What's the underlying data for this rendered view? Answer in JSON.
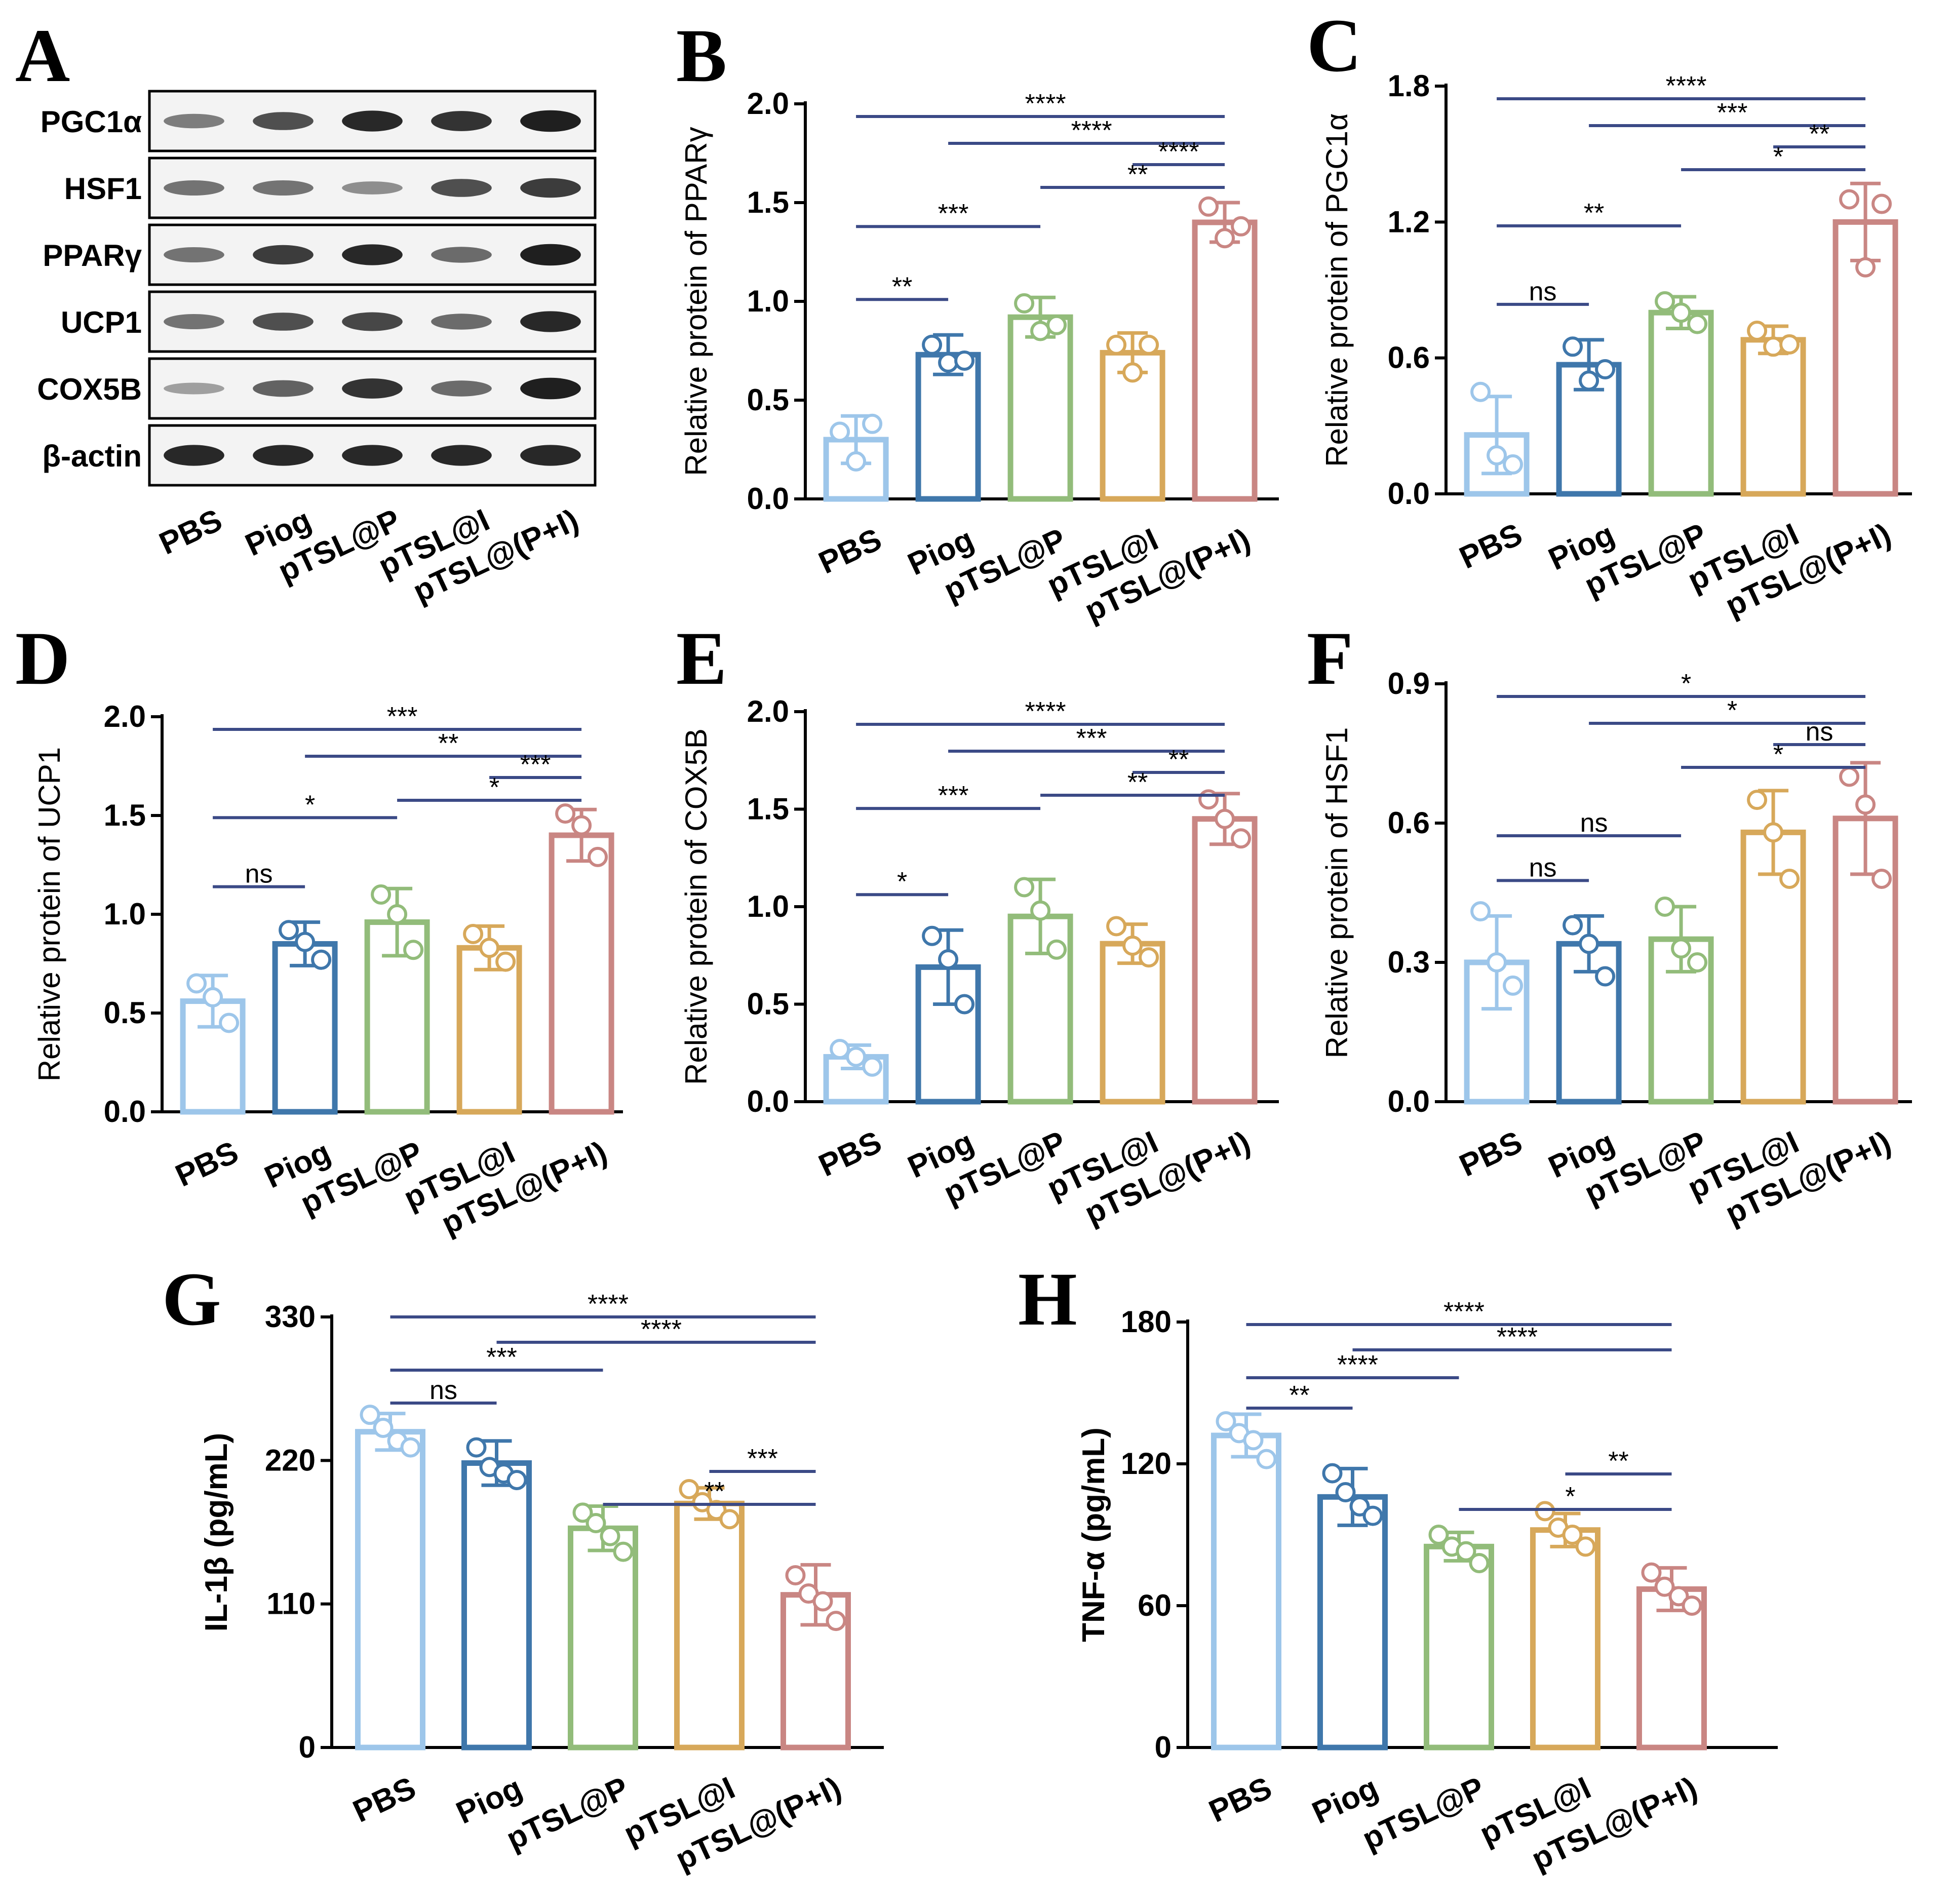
{
  "colors": {
    "PBS": "#9DC6EA",
    "Piog": "#3F77AB",
    "pTSL@P": "#92BC7A",
    "pTSL@I": "#D7A85A",
    "pTSL@(P+I)": "#C98683",
    "sigline": "#3B4A86",
    "axis": "#000000"
  },
  "panel_letters": [
    "A",
    "B",
    "C",
    "D",
    "E",
    "F",
    "G",
    "H"
  ],
  "blot": {
    "letter": "A",
    "proteins": [
      "PGC1α",
      "HSF1",
      "PPARγ",
      "UCP1",
      "COX5B",
      "β-actin"
    ],
    "lanes": [
      "PBS",
      "Piog",
      "pTSL@P",
      "pTSL@I",
      "pTSL@(P+I)"
    ],
    "band_intensity": [
      [
        0.45,
        0.7,
        0.9,
        0.85,
        0.95
      ],
      [
        0.5,
        0.5,
        0.35,
        0.7,
        0.8
      ],
      [
        0.5,
        0.8,
        0.9,
        0.55,
        0.95
      ],
      [
        0.5,
        0.7,
        0.75,
        0.55,
        0.9
      ],
      [
        0.25,
        0.6,
        0.85,
        0.55,
        0.95
      ],
      [
        0.9,
        0.9,
        0.9,
        0.9,
        0.9
      ]
    ]
  },
  "chart_data": [
    {
      "panel": "B",
      "type": "bar",
      "categories": [
        "PBS",
        "Piog",
        "pTSL@P",
        "pTSL@I",
        "pTSL@(P+I)"
      ],
      "values": [
        0.3,
        0.73,
        0.92,
        0.74,
        1.4
      ],
      "errors": [
        0.12,
        0.1,
        0.1,
        0.1,
        0.1
      ],
      "points": [
        [
          0.34,
          0.19,
          0.38
        ],
        [
          0.78,
          0.69,
          0.7
        ],
        [
          0.99,
          0.85,
          0.88
        ],
        [
          0.78,
          0.64,
          0.78
        ],
        [
          1.48,
          1.32,
          1.38
        ]
      ],
      "ylabel": "Relative protein of PPARγ",
      "ylim": [
        0,
        2.0
      ],
      "yticks": [
        0,
        0.5,
        1.0,
        1.5,
        2.0
      ],
      "ytick_labels": [
        "0.0",
        "0.5",
        "1.0",
        "1.5",
        "2.0"
      ],
      "brackets": [
        {
          "from": 0,
          "to": 4,
          "label": "****"
        },
        {
          "from": 1,
          "to": 4,
          "label": "****"
        },
        {
          "from": 3,
          "to": 4,
          "label": "****"
        },
        {
          "from": 2,
          "to": 4,
          "label": "**"
        },
        {
          "from": 0,
          "to": 2,
          "label": "***"
        },
        {
          "from": 0,
          "to": 1,
          "label": "**"
        }
      ]
    },
    {
      "panel": "C",
      "type": "bar",
      "categories": [
        "PBS",
        "Piog",
        "pTSL@P",
        "pTSL@I",
        "pTSL@(P+I)"
      ],
      "values": [
        0.26,
        0.57,
        0.8,
        0.68,
        1.2
      ],
      "errors": [
        0.17,
        0.11,
        0.07,
        0.06,
        0.17
      ],
      "points": [
        [
          0.45,
          0.17,
          0.13
        ],
        [
          0.65,
          0.5,
          0.55
        ],
        [
          0.85,
          0.8,
          0.75
        ],
        [
          0.72,
          0.65,
          0.66
        ],
        [
          1.3,
          1.0,
          1.28
        ]
      ],
      "ylabel": "Relative protein of PGC1α",
      "ylim": [
        0,
        1.8
      ],
      "yticks": [
        0,
        0.6,
        1.2,
        1.8
      ],
      "ytick_labels": [
        "0.0",
        "0.6",
        "1.2",
        "1.8"
      ],
      "brackets": [
        {
          "from": 0,
          "to": 4,
          "label": "****"
        },
        {
          "from": 1,
          "to": 4,
          "label": "***"
        },
        {
          "from": 3,
          "to": 4,
          "label": "**"
        },
        {
          "from": 2,
          "to": 4,
          "label": "*"
        },
        {
          "from": 0,
          "to": 2,
          "label": "**"
        },
        {
          "from": 0,
          "to": 1,
          "label": "ns"
        }
      ]
    },
    {
      "panel": "D",
      "type": "bar",
      "categories": [
        "PBS",
        "Piog",
        "pTSL@P",
        "pTSL@I",
        "pTSL@(P+I)"
      ],
      "values": [
        0.56,
        0.85,
        0.96,
        0.83,
        1.4
      ],
      "errors": [
        0.13,
        0.11,
        0.17,
        0.11,
        0.13
      ],
      "points": [
        [
          0.65,
          0.58,
          0.45
        ],
        [
          0.92,
          0.86,
          0.77
        ],
        [
          1.1,
          1.0,
          0.82
        ],
        [
          0.9,
          0.83,
          0.76
        ],
        [
          1.51,
          1.45,
          1.29
        ]
      ],
      "ylabel": "Relative protein of UCP1",
      "ylim": [
        0,
        2.0
      ],
      "yticks": [
        0,
        0.5,
        1.0,
        1.5,
        2.0
      ],
      "ytick_labels": [
        "0.0",
        "0.5",
        "1.0",
        "1.5",
        "2.0"
      ],
      "brackets": [
        {
          "from": 0,
          "to": 4,
          "label": "***"
        },
        {
          "from": 1,
          "to": 4,
          "label": "**"
        },
        {
          "from": 3,
          "to": 4,
          "label": "***"
        },
        {
          "from": 2,
          "to": 4,
          "label": "*"
        },
        {
          "from": 0,
          "to": 2,
          "label": "*"
        },
        {
          "from": 0,
          "to": 1,
          "label": "ns"
        }
      ]
    },
    {
      "panel": "E",
      "type": "bar",
      "categories": [
        "PBS",
        "Piog",
        "pTSL@P",
        "pTSL@I",
        "pTSL@(P+I)"
      ],
      "values": [
        0.23,
        0.69,
        0.95,
        0.81,
        1.45
      ],
      "errors": [
        0.06,
        0.19,
        0.19,
        0.1,
        0.13
      ],
      "points": [
        [
          0.27,
          0.23,
          0.18
        ],
        [
          0.85,
          0.73,
          0.5
        ],
        [
          1.1,
          0.98,
          0.78
        ],
        [
          0.9,
          0.8,
          0.74
        ],
        [
          1.55,
          1.45,
          1.35
        ]
      ],
      "ylabel": "Relative protein of COX5B",
      "ylim": [
        0,
        2.0
      ],
      "yticks": [
        0,
        0.5,
        1.0,
        1.5,
        2.0
      ],
      "ytick_labels": [
        "0.0",
        "0.5",
        "1.0",
        "1.5",
        "2.0"
      ],
      "brackets": [
        {
          "from": 0,
          "to": 4,
          "label": "****"
        },
        {
          "from": 1,
          "to": 4,
          "label": "***"
        },
        {
          "from": 3,
          "to": 4,
          "label": "**"
        },
        {
          "from": 2,
          "to": 4,
          "label": "**"
        },
        {
          "from": 0,
          "to": 2,
          "label": "***"
        },
        {
          "from": 0,
          "to": 1,
          "label": "*"
        }
      ]
    },
    {
      "panel": "F",
      "type": "bar",
      "categories": [
        "PBS",
        "Piog",
        "pTSL@P",
        "pTSL@I",
        "pTSL@(P+I)"
      ],
      "values": [
        0.3,
        0.34,
        0.35,
        0.58,
        0.61
      ],
      "errors": [
        0.1,
        0.06,
        0.07,
        0.09,
        0.12
      ],
      "points": [
        [
          0.41,
          0.3,
          0.25
        ],
        [
          0.38,
          0.34,
          0.27
        ],
        [
          0.42,
          0.33,
          0.3
        ],
        [
          0.65,
          0.58,
          0.48
        ],
        [
          0.7,
          0.64,
          0.48
        ]
      ],
      "ylabel": "Relative protein of HSF1",
      "ylim": [
        0,
        0.9
      ],
      "yticks": [
        0,
        0.3,
        0.6,
        0.9
      ],
      "ytick_labels": [
        "0.0",
        "0.3",
        "0.6",
        "0.9"
      ],
      "brackets": [
        {
          "from": 0,
          "to": 4,
          "label": "*"
        },
        {
          "from": 1,
          "to": 4,
          "label": "*"
        },
        {
          "from": 3,
          "to": 4,
          "label": "ns"
        },
        {
          "from": 2,
          "to": 4,
          "label": "*"
        },
        {
          "from": 0,
          "to": 2,
          "label": "ns"
        },
        {
          "from": 0,
          "to": 1,
          "label": "ns"
        }
      ]
    },
    {
      "panel": "G",
      "type": "bar",
      "categories": [
        "PBS",
        "Piog",
        "pTSL@P",
        "pTSL@I",
        "pTSL@(P+I)"
      ],
      "values": [
        242,
        218,
        168,
        187,
        117
      ],
      "errors": [
        14,
        17,
        17,
        12,
        23
      ],
      "points": [
        [
          255,
          245,
          235,
          230
        ],
        [
          230,
          215,
          210,
          205
        ],
        [
          180,
          172,
          162,
          150
        ],
        [
          198,
          188,
          182,
          175
        ],
        [
          132,
          118,
          112,
          97
        ]
      ],
      "ylabel": "IL-1β (pg/mL)",
      "ylim": [
        0,
        330
      ],
      "yticks": [
        0,
        110,
        220,
        330
      ],
      "ytick_labels": [
        "0",
        "110",
        "220",
        "330"
      ],
      "brackets": [
        {
          "from": 0,
          "to": 4,
          "label": "****"
        },
        {
          "from": 1,
          "to": 4,
          "label": "****"
        },
        {
          "from": 0,
          "to": 2,
          "label": "***"
        },
        {
          "from": 0,
          "to": 1,
          "label": "ns"
        },
        {
          "from": 3,
          "to": 4,
          "label": "***"
        },
        {
          "from": 2,
          "to": 4,
          "label": "**"
        }
      ]
    },
    {
      "panel": "H",
      "type": "bar",
      "categories": [
        "PBS",
        "Piog",
        "pTSL@P",
        "pTSL@I",
        "pTSL@(P+I)"
      ],
      "values": [
        132,
        106,
        85,
        92,
        67
      ],
      "errors": [
        9,
        12,
        6,
        7,
        9
      ],
      "points": [
        [
          138,
          133,
          130,
          122
        ],
        [
          116,
          108,
          102,
          98
        ],
        [
          90,
          85,
          83,
          78
        ],
        [
          100,
          93,
          90,
          85
        ],
        [
          74,
          68,
          64,
          60
        ]
      ],
      "ylabel": "TNF-α (pg/mL)",
      "ylim": [
        0,
        180
      ],
      "yticks": [
        0,
        60,
        120,
        180
      ],
      "ytick_labels": [
        "0",
        "60",
        "120",
        "180"
      ],
      "brackets": [
        {
          "from": 0,
          "to": 4,
          "label": "****"
        },
        {
          "from": 1,
          "to": 4,
          "label": "****"
        },
        {
          "from": 0,
          "to": 2,
          "label": "****"
        },
        {
          "from": 0,
          "to": 1,
          "label": "**"
        },
        {
          "from": 3,
          "to": 4,
          "label": "**"
        },
        {
          "from": 2,
          "to": 4,
          "label": "*"
        }
      ]
    }
  ]
}
